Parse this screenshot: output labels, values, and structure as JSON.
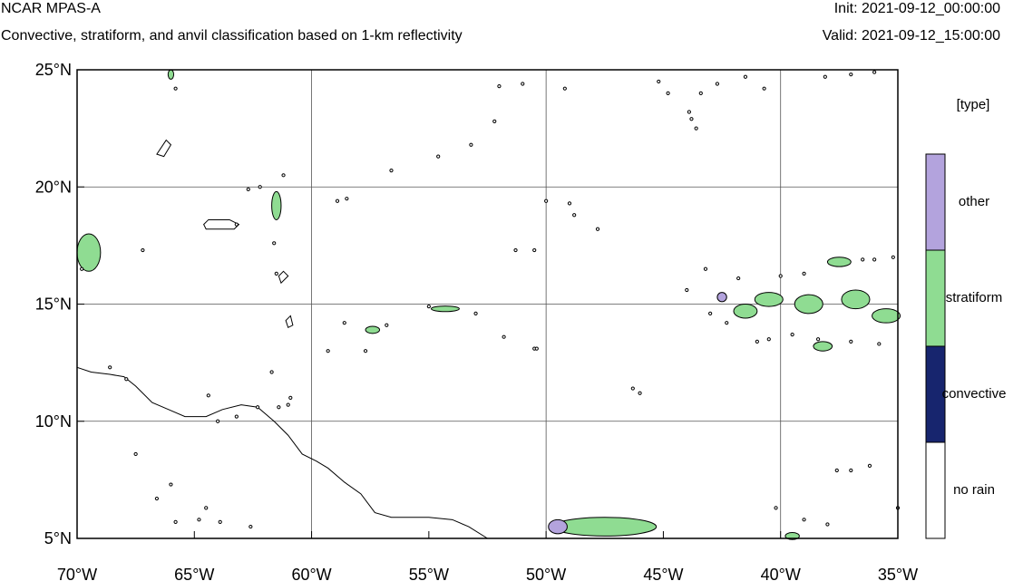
{
  "header": {
    "model": "NCAR MPAS-A",
    "subtitle": "Convective, stratiform, and anvil classification based on 1-km reflectivity",
    "init": "Init: 2021-09-12_00:00:00",
    "valid": "Valid: 2021-09-12_15:00:00"
  },
  "map": {
    "lon_range": [
      -70,
      -35
    ],
    "lat_range": [
      5,
      25
    ],
    "lon_ticks": [
      {
        "value": -70,
        "label": "70°W"
      },
      {
        "value": -65,
        "label": "65°W"
      },
      {
        "value": -60,
        "label": "60°W"
      },
      {
        "value": -55,
        "label": "55°W"
      },
      {
        "value": -50,
        "label": "50°W"
      },
      {
        "value": -45,
        "label": "45°W"
      },
      {
        "value": -40,
        "label": "40°W"
      },
      {
        "value": -35,
        "label": "35°W"
      }
    ],
    "lat_ticks": [
      {
        "value": 25,
        "label": "25°N"
      },
      {
        "value": 20,
        "label": "20°N"
      },
      {
        "value": 15,
        "label": "15°N"
      },
      {
        "value": 10,
        "label": "10°N"
      },
      {
        "value": 5,
        "label": "5°N"
      }
    ],
    "grid_lons": [
      -60,
      -50,
      -40
    ],
    "grid_lats": [
      10,
      15,
      20
    ],
    "coastline": [
      [
        -70,
        12.3
      ],
      [
        -69.4,
        12.1
      ],
      [
        -68.6,
        12.0
      ],
      [
        -68.0,
        11.9
      ],
      [
        -67.5,
        11.5
      ],
      [
        -66.8,
        10.8
      ],
      [
        -66.1,
        10.5
      ],
      [
        -65.4,
        10.2
      ],
      [
        -64.5,
        10.2
      ],
      [
        -63.8,
        10.5
      ],
      [
        -63.0,
        10.7
      ],
      [
        -62.3,
        10.6
      ],
      [
        -61.6,
        10.0
      ],
      [
        -61.0,
        9.4
      ],
      [
        -60.4,
        8.6
      ],
      [
        -59.8,
        8.3
      ],
      [
        -59.3,
        8.0
      ],
      [
        -58.6,
        7.4
      ],
      [
        -57.9,
        6.9
      ],
      [
        -57.3,
        6.1
      ],
      [
        -56.6,
        5.9
      ],
      [
        -55.8,
        5.9
      ],
      [
        -55.0,
        5.9
      ],
      [
        -54.0,
        5.8
      ],
      [
        -53.3,
        5.5
      ],
      [
        -52.5,
        5.0
      ]
    ],
    "islands": [
      [
        [
          -64.4,
          18.6
        ],
        [
          -63.5,
          18.6
        ],
        [
          -63.1,
          18.4
        ],
        [
          -63.3,
          18.2
        ],
        [
          -64.5,
          18.2
        ],
        [
          -64.6,
          18.4
        ]
      ],
      [
        [
          -66.2,
          22.0
        ],
        [
          -66.0,
          21.8
        ],
        [
          -66.3,
          21.3
        ],
        [
          -66.6,
          21.4
        ]
      ],
      [
        [
          -61.2,
          16.4
        ],
        [
          -61.0,
          16.2
        ],
        [
          -61.3,
          15.9
        ],
        [
          -61.4,
          16.2
        ]
      ],
      [
        [
          -60.9,
          14.5
        ],
        [
          -60.8,
          14.1
        ],
        [
          -61.0,
          14.0
        ],
        [
          -61.1,
          14.3
        ]
      ]
    ],
    "cells": [
      {
        "lon": -69.5,
        "lat": 17.2,
        "rx": 0.5,
        "ry": 0.8,
        "type": "stratiform"
      },
      {
        "lon": -61.5,
        "lat": 19.2,
        "rx": 0.2,
        "ry": 0.6,
        "type": "stratiform"
      },
      {
        "lon": -47.5,
        "lat": 5.5,
        "rx": 2.2,
        "ry": 0.4,
        "type": "stratiform"
      },
      {
        "lon": -49.5,
        "lat": 5.5,
        "rx": 0.4,
        "ry": 0.3,
        "type": "other"
      },
      {
        "lon": -39.5,
        "lat": 5.1,
        "rx": 0.3,
        "ry": 0.15,
        "type": "stratiform"
      },
      {
        "lon": -40.5,
        "lat": 15.2,
        "rx": 0.6,
        "ry": 0.3,
        "type": "stratiform"
      },
      {
        "lon": -38.8,
        "lat": 15.0,
        "rx": 0.6,
        "ry": 0.4,
        "type": "stratiform"
      },
      {
        "lon": -36.8,
        "lat": 15.2,
        "rx": 0.6,
        "ry": 0.4,
        "type": "stratiform"
      },
      {
        "lon": -35.5,
        "lat": 14.5,
        "rx": 0.6,
        "ry": 0.3,
        "type": "stratiform"
      },
      {
        "lon": -41.5,
        "lat": 14.7,
        "rx": 0.5,
        "ry": 0.3,
        "type": "stratiform"
      },
      {
        "lon": -38.2,
        "lat": 13.2,
        "rx": 0.4,
        "ry": 0.2,
        "type": "stratiform"
      },
      {
        "lon": -37.5,
        "lat": 16.8,
        "rx": 0.5,
        "ry": 0.2,
        "type": "stratiform"
      },
      {
        "lon": -42.5,
        "lat": 15.3,
        "rx": 0.2,
        "ry": 0.2,
        "type": "other"
      },
      {
        "lon": -57.4,
        "lat": 13.9,
        "rx": 0.3,
        "ry": 0.15,
        "type": "stratiform"
      },
      {
        "lon": -54.3,
        "lat": 14.8,
        "rx": 0.6,
        "ry": 0.12,
        "type": "stratiform"
      },
      {
        "lon": -66.0,
        "lat": 24.8,
        "rx": 0.12,
        "ry": 0.2,
        "type": "stratiform"
      }
    ],
    "dots": [
      [
        -65.8,
        24.2
      ],
      [
        -62.2,
        20.0
      ],
      [
        -61.2,
        20.5
      ],
      [
        -58.9,
        19.4
      ],
      [
        -56.6,
        20.7
      ],
      [
        -54.6,
        21.3
      ],
      [
        -52.0,
        24.3
      ],
      [
        -51.0,
        24.4
      ],
      [
        -52.2,
        22.8
      ],
      [
        -53.2,
        21.8
      ],
      [
        -50.0,
        19.4
      ],
      [
        -49.0,
        19.3
      ],
      [
        -48.8,
        18.8
      ],
      [
        -47.8,
        18.2
      ],
      [
        -51.3,
        17.3
      ],
      [
        -50.5,
        17.3
      ],
      [
        -63.2,
        18.4
      ],
      [
        -61.6,
        17.6
      ],
      [
        -61.5,
        16.3
      ],
      [
        -67.2,
        17.3
      ],
      [
        -59.3,
        13.0
      ],
      [
        -57.7,
        13.0
      ],
      [
        -55.0,
        14.9
      ],
      [
        -58.6,
        14.2
      ],
      [
        -56.8,
        14.1
      ],
      [
        -51.8,
        13.6
      ],
      [
        -50.5,
        13.1
      ],
      [
        -50.4,
        13.1
      ],
      [
        -53.0,
        14.6
      ],
      [
        -61.7,
        12.1
      ],
      [
        -61.4,
        10.6
      ],
      [
        -62.3,
        10.6
      ],
      [
        -61.0,
        10.7
      ],
      [
        -64.0,
        10.0
      ],
      [
        -63.2,
        10.2
      ],
      [
        -64.4,
        11.1
      ],
      [
        -67.9,
        11.8
      ],
      [
        -68.6,
        12.3
      ],
      [
        -66.6,
        6.7
      ],
      [
        -66.0,
        7.3
      ],
      [
        -64.5,
        6.3
      ],
      [
        -63.9,
        5.7
      ],
      [
        -62.6,
        5.5
      ],
      [
        -65.8,
        5.7
      ],
      [
        -64.8,
        5.8
      ],
      [
        -67.5,
        8.6
      ],
      [
        -46.3,
        11.4
      ],
      [
        -46.0,
        11.2
      ],
      [
        -45.2,
        24.5
      ],
      [
        -44.8,
        24.0
      ],
      [
        -43.9,
        23.2
      ],
      [
        -43.4,
        24.0
      ],
      [
        -42.7,
        24.4
      ],
      [
        -41.5,
        24.7
      ],
      [
        -40.7,
        24.2
      ],
      [
        -38.1,
        24.7
      ],
      [
        -37.0,
        24.8
      ],
      [
        -36.0,
        24.9
      ],
      [
        -43.8,
        22.9
      ],
      [
        -43.6,
        22.5
      ],
      [
        -40.2,
        6.3
      ],
      [
        -39.0,
        5.8
      ],
      [
        -38.0,
        5.6
      ],
      [
        -37.6,
        7.9
      ],
      [
        -37.0,
        7.9
      ],
      [
        -36.2,
        8.1
      ],
      [
        -35.0,
        6.3
      ],
      [
        -36.5,
        16.9
      ],
      [
        -39.5,
        13.7
      ],
      [
        -38.4,
        13.5
      ],
      [
        -37.0,
        13.4
      ],
      [
        -35.8,
        13.3
      ],
      [
        -40.5,
        13.5
      ],
      [
        -41.0,
        13.4
      ],
      [
        -42.3,
        14.2
      ],
      [
        -43.0,
        14.6
      ],
      [
        -44.0,
        15.6
      ],
      [
        -43.2,
        16.5
      ],
      [
        -41.8,
        16.1
      ],
      [
        -40.0,
        16.2
      ],
      [
        -39.0,
        16.3
      ],
      [
        -36.0,
        16.9
      ],
      [
        -35.2,
        17.0
      ],
      [
        -58.5,
        19.5
      ],
      [
        -62.7,
        19.9
      ],
      [
        -69.8,
        16.5
      ],
      [
        -60.9,
        11.0
      ],
      [
        -49.2,
        24.2
      ]
    ]
  },
  "legend": {
    "title": "[type]",
    "items": [
      {
        "label": "other",
        "color": "#b3a3dd"
      },
      {
        "label": "stratiform",
        "color": "#8fdc92"
      },
      {
        "label": "convective",
        "color": "#17256e"
      },
      {
        "label": "no rain",
        "color": "#ffffff"
      }
    ]
  }
}
